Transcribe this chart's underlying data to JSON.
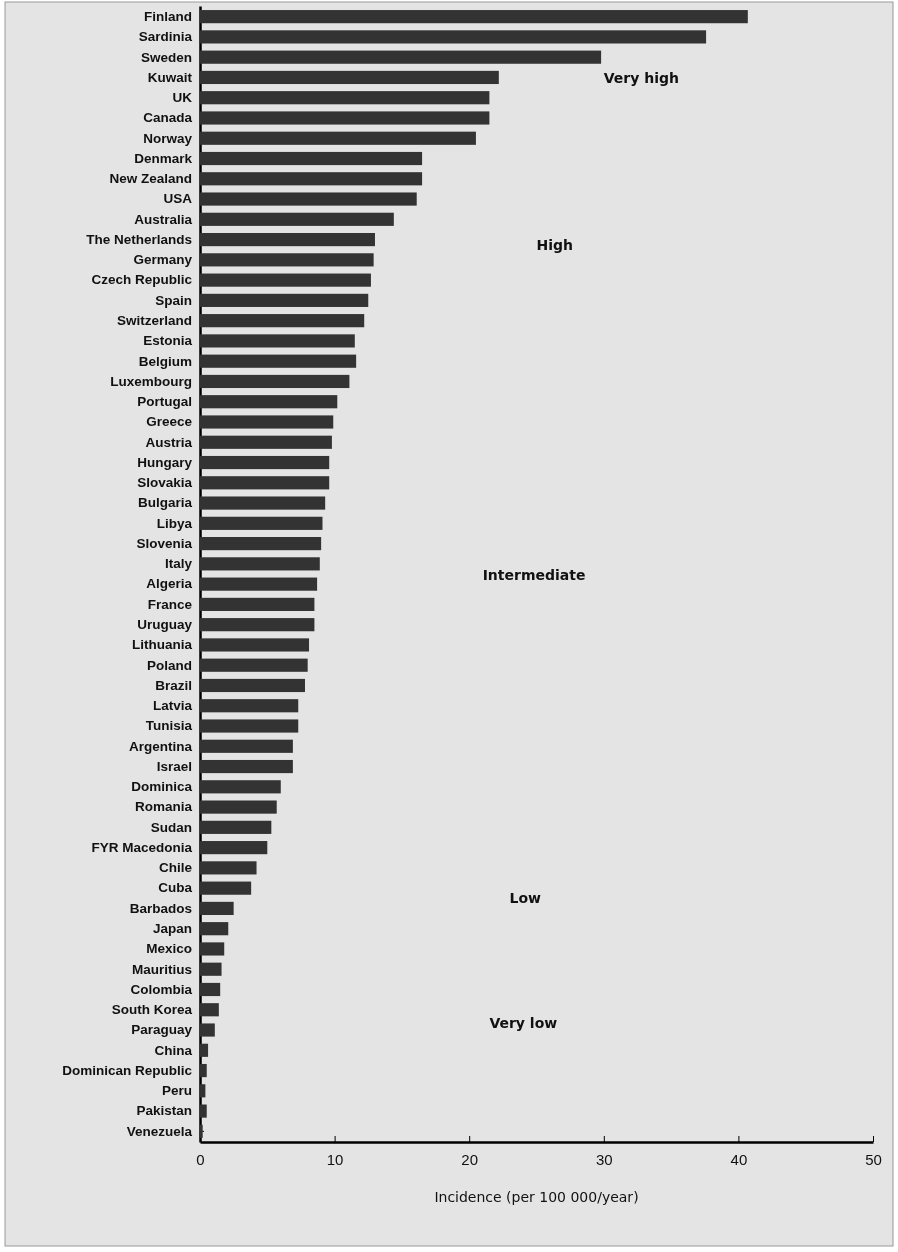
{
  "chart_data": {
    "type": "bar",
    "orientation": "horizontal",
    "xlabel": "Incidence (per 100 000/year)",
    "categories": [
      "Finland",
      "Sardinia",
      "Sweden",
      "Kuwait",
      "UK",
      "Canada",
      "Norway",
      "Denmark",
      "New Zealand",
      "USA",
      "Australia",
      "The Netherlands",
      "Germany",
      "Czech Republic",
      "Spain",
      "Switzerland",
      "Estonia",
      "Belgium",
      "Luxembourg",
      "Portugal",
      "Greece",
      "Austria",
      "Hungary",
      "Slovakia",
      "Bulgaria",
      "Libya",
      "Slovenia",
      "Italy",
      "Algeria",
      "France",
      "Uruguay",
      "Lithuania",
      "Poland",
      "Brazil",
      "Latvia",
      "Tunisia",
      "Argentina",
      "Israel",
      "Dominica",
      "Romania",
      "Sudan",
      "FYR Macedonia",
      "Chile",
      "Cuba",
      "Barbados",
      "Japan",
      "Mexico",
      "Mauritius",
      "Colombia",
      "South Korea",
      "Paraguay",
      "China",
      "Dominican Republic",
      "Peru",
      "Pakistan",
      "Venezuela"
    ],
    "values": [
      40.7,
      37.6,
      29.8,
      22.2,
      21.5,
      21.5,
      20.5,
      16.5,
      16.5,
      16.1,
      14.4,
      13.0,
      12.9,
      12.7,
      12.5,
      12.2,
      11.5,
      11.6,
      11.1,
      10.2,
      9.9,
      9.8,
      9.6,
      9.6,
      9.3,
      9.1,
      9.0,
      8.9,
      8.7,
      8.5,
      8.5,
      8.1,
      8.0,
      7.8,
      7.3,
      7.3,
      6.9,
      6.9,
      6.0,
      5.7,
      5.3,
      5.0,
      4.2,
      3.8,
      2.5,
      2.1,
      1.8,
      1.6,
      1.5,
      1.4,
      1.1,
      0.6,
      0.5,
      0.4,
      0.5,
      0.2
    ],
    "color": "#333333",
    "xlim": [
      0,
      50
    ],
    "xticks": [
      0,
      10,
      20,
      30,
      40,
      50
    ],
    "annotations": [
      "Very high",
      "High",
      "Intermediate",
      "Low",
      "Very low"
    ]
  }
}
